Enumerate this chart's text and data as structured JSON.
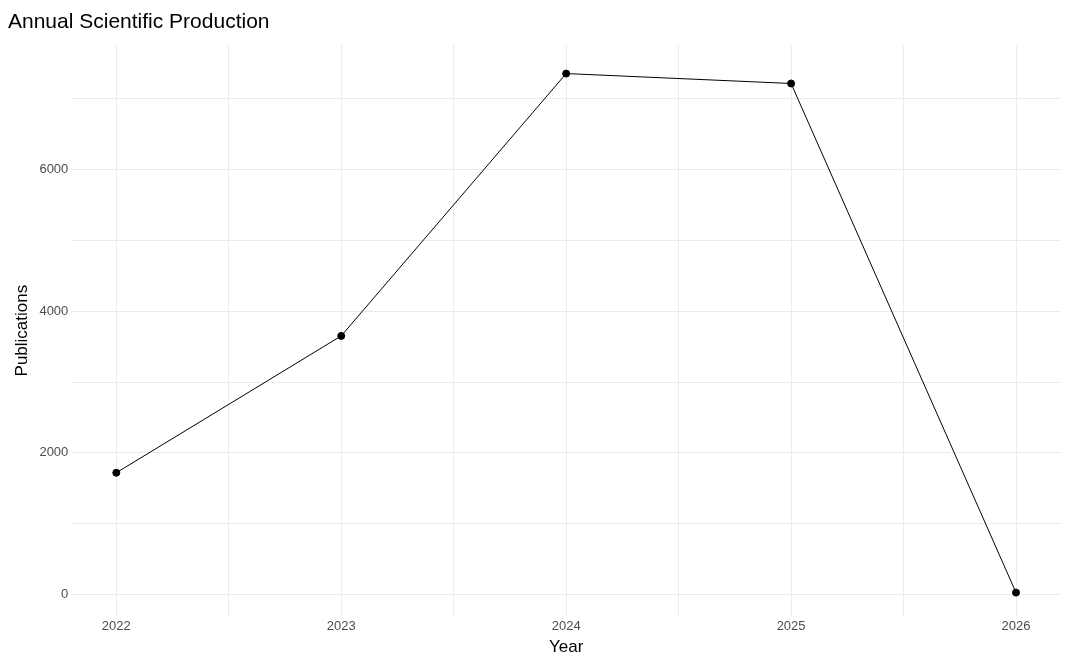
{
  "chart_data": {
    "type": "line",
    "title": "Annual Scientific Production",
    "xlabel": "Year",
    "ylabel": "Publications",
    "x": [
      2022,
      2023,
      2024,
      2025,
      2026
    ],
    "series": [
      {
        "color": "#000000",
        "values": [
          1720,
          3650,
          7350,
          7210,
          30
        ]
      }
    ],
    "xlim": [
      2021.8,
      2026.2
    ],
    "xticks": [
      2022,
      {
        "value": 2022.5,
        "label": null
      },
      2023,
      {
        "value": 2023.5,
        "label": null
      },
      2024,
      {
        "value": 2024.5,
        "label": null
      },
      2025,
      {
        "value": 2025.5,
        "label": null
      },
      2026
    ],
    "ylim": [
      -300,
      7750
    ],
    "yticks": [
      0,
      {
        "value": 1000,
        "label": null
      },
      2000,
      {
        "value": 3000,
        "label": null
      },
      4000,
      {
        "value": 5000,
        "label": null
      },
      6000,
      {
        "value": 7000,
        "label": null
      }
    ],
    "grid": true,
    "legend": false,
    "marker": "circle",
    "line_style": "solid"
  }
}
